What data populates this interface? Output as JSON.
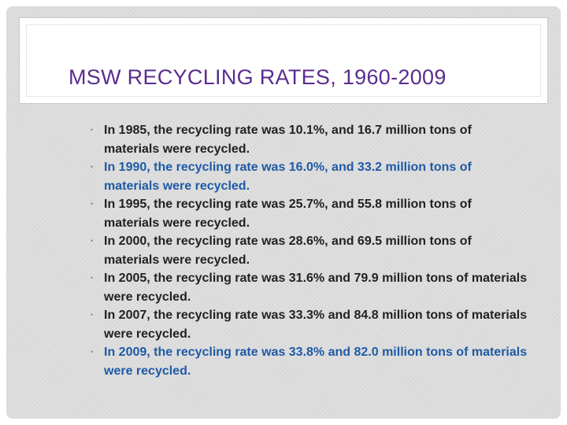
{
  "slide": {
    "title": "MSW RECYCLING RATES, 1960-2009",
    "bullet_glyph": "•",
    "bullets": [
      {
        "text": "In 1985, the recycling rate was 10.1%, and 16.7 million tons of materials were recycled.",
        "color": "#222222"
      },
      {
        "text": "In 1990, the recycling rate was 16.0%, and 33.2 million tons of materials were recycled.",
        "color": "#1f5aa6"
      },
      {
        "text": "In 1995, the recycling rate was 25.7%, and 55.8 million tons of materials were recycled.",
        "color": "#222222"
      },
      {
        "text": "In 2000, the recycling rate was 28.6%, and 69.5 million tons of materials were recycled.",
        "color": "#222222"
      },
      {
        "text": "In 2005, the recycling rate was 31.6% and 79.9 million tons of materials were recycled.",
        "color": "#222222"
      },
      {
        "text": "In 2007, the recycling rate was 33.3% and 84.8 million tons of materials were recycled.",
        "color": "#222222"
      },
      {
        "text": "In 2009, the recycling rate was 33.8% and 82.0 million tons of materials were recycled.",
        "color": "#1f5aa6"
      }
    ]
  },
  "colors": {
    "title": "#5b2d8e",
    "body_text": "#222222",
    "highlight_text": "#1f5aa6",
    "bullet": "#8a8a8a"
  }
}
